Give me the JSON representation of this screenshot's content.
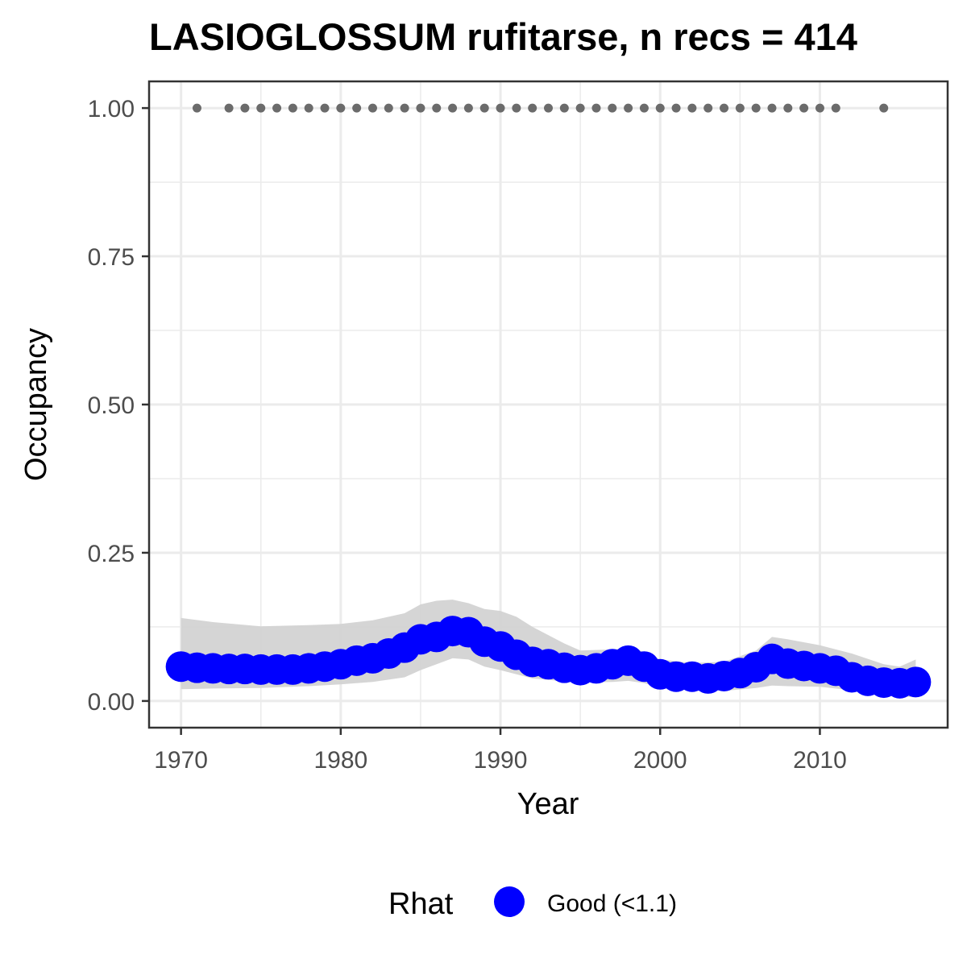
{
  "chart_data": {
    "type": "line",
    "title": "LASIOGLOSSUM rufitarse, n recs = 414",
    "xlabel": "Year",
    "ylabel": "Occupancy",
    "xlim": [
      1968,
      2018
    ],
    "ylim": [
      -0.045,
      1.045
    ],
    "x_ticks": [
      1970,
      1980,
      1990,
      2000,
      2010
    ],
    "x_tick_labels": [
      "1970",
      "1980",
      "1990",
      "2000",
      "2010"
    ],
    "y_ticks": [
      0,
      0.25,
      0.5,
      0.75,
      1.0
    ],
    "y_tick_labels": [
      "0.00",
      "0.25",
      "0.50",
      "0.75",
      "1.00"
    ],
    "grid": true,
    "legend": {
      "title": "Rhat",
      "placement": "bottom",
      "entries": [
        {
          "label": "Good (<1.1)",
          "color": "#0000ff"
        }
      ]
    },
    "colors": {
      "series": "#0000ff",
      "ribbon": "#d3d3d3",
      "records": "#6b6b6b",
      "panel_border": "#333333",
      "grid": "#ebebeb"
    },
    "series": [
      {
        "name": "Good (<1.1)",
        "x": [
          1970,
          1971,
          1972,
          1973,
          1974,
          1975,
          1976,
          1977,
          1978,
          1979,
          1980,
          1981,
          1982,
          1983,
          1984,
          1985,
          1986,
          1987,
          1988,
          1989,
          1990,
          1991,
          1992,
          1993,
          1994,
          1995,
          1996,
          1997,
          1998,
          1999,
          2000,
          2001,
          2002,
          2003,
          2004,
          2005,
          2006,
          2007,
          2008,
          2009,
          2010,
          2011,
          2012,
          2013,
          2014,
          2015,
          2016
        ],
        "y": [
          0.058,
          0.056,
          0.055,
          0.054,
          0.054,
          0.053,
          0.053,
          0.053,
          0.055,
          0.058,
          0.062,
          0.068,
          0.072,
          0.08,
          0.09,
          0.104,
          0.108,
          0.118,
          0.116,
          0.1,
          0.092,
          0.078,
          0.066,
          0.062,
          0.056,
          0.052,
          0.055,
          0.062,
          0.068,
          0.058,
          0.045,
          0.041,
          0.041,
          0.038,
          0.042,
          0.047,
          0.057,
          0.071,
          0.063,
          0.059,
          0.055,
          0.051,
          0.04,
          0.034,
          0.031,
          0.03,
          0.032
        ]
      }
    ],
    "ribbon": {
      "x": [
        1970,
        1972,
        1975,
        1978,
        1980,
        1982,
        1984,
        1985,
        1986,
        1987,
        1988,
        1989,
        1990,
        1991,
        1992,
        1994,
        1995,
        1997,
        1998,
        1999,
        2000,
        2002,
        2004,
        2006,
        2007,
        2008,
        2010,
        2012,
        2014,
        2015,
        2016
      ],
      "lower": [
        0.02,
        0.021,
        0.022,
        0.025,
        0.028,
        0.032,
        0.04,
        0.052,
        0.062,
        0.072,
        0.07,
        0.058,
        0.052,
        0.045,
        0.038,
        0.033,
        0.031,
        0.032,
        0.034,
        0.03,
        0.022,
        0.019,
        0.017,
        0.022,
        0.026,
        0.025,
        0.024,
        0.018,
        0.012,
        0.008,
        0.006
      ],
      "upper": [
        0.14,
        0.133,
        0.126,
        0.128,
        0.13,
        0.136,
        0.148,
        0.163,
        0.169,
        0.171,
        0.165,
        0.155,
        0.152,
        0.142,
        0.125,
        0.097,
        0.085,
        0.087,
        0.09,
        0.083,
        0.07,
        0.064,
        0.066,
        0.085,
        0.108,
        0.104,
        0.094,
        0.08,
        0.062,
        0.058,
        0.07
      ]
    },
    "records": {
      "y": 1.0,
      "x": [
        1971,
        1973,
        1974,
        1975,
        1976,
        1977,
        1978,
        1979,
        1980,
        1981,
        1982,
        1983,
        1984,
        1985,
        1986,
        1987,
        1988,
        1989,
        1990,
        1991,
        1992,
        1993,
        1994,
        1995,
        1996,
        1997,
        1998,
        1999,
        2000,
        2001,
        2002,
        2003,
        2004,
        2005,
        2006,
        2007,
        2008,
        2009,
        2010,
        2011,
        2014
      ]
    }
  }
}
